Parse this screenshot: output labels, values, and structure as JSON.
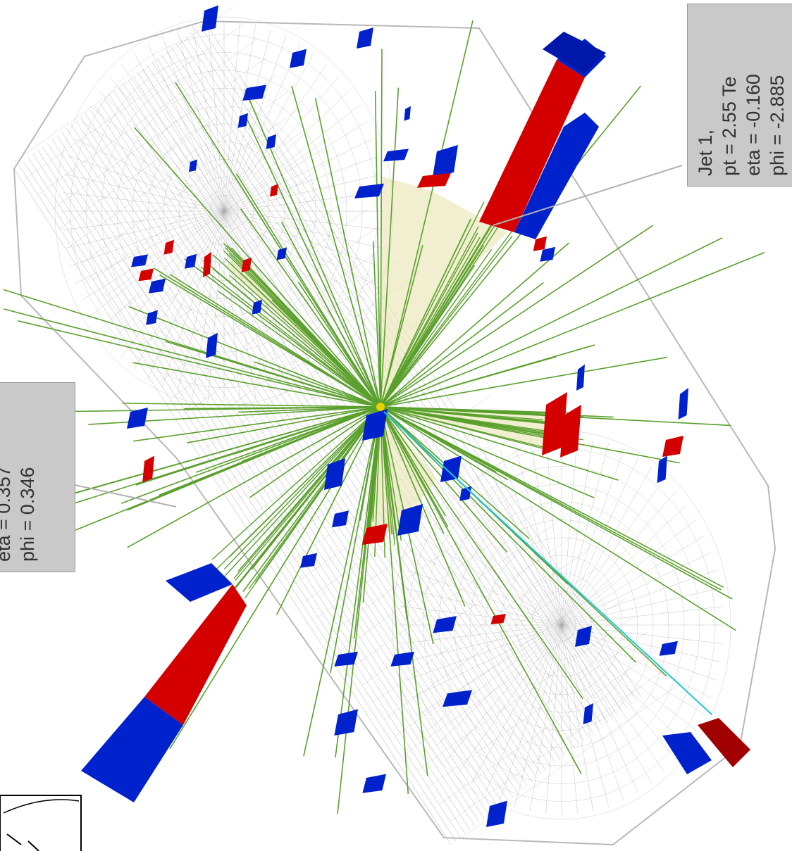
{
  "labels": {
    "jet1": {
      "line1": "Jet 1,",
      "line2": "pt = 2.55 Te",
      "line3": "eta = -0.160",
      "line4": "phi = -2.885"
    },
    "jet2": {
      "line1": "eta = 0.357",
      "line2": "phi = 0.346"
    }
  },
  "colors": {
    "track": "#5aa02c",
    "cone": "#e8e5b0",
    "ecal": "#d40000",
    "hcal": "#0022cc",
    "mesh": "#a9a9a9",
    "muon": "#22c7d6"
  }
}
